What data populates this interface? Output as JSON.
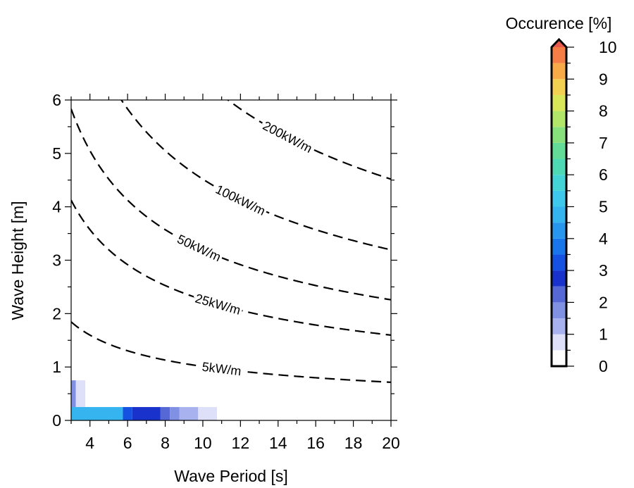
{
  "chart_data": {
    "type": "heatmap",
    "xlabel": "Wave Period [s]",
    "ylabel": "Wave Height [m]",
    "xlim": [
      3,
      20
    ],
    "ylim": [
      0,
      6
    ],
    "x_ticks": [
      4,
      6,
      8,
      10,
      12,
      14,
      16,
      18,
      20
    ],
    "y_ticks": [
      0,
      1,
      2,
      3,
      4,
      5,
      6
    ],
    "cells": [
      {
        "x0": 3.0,
        "x1": 3.25,
        "y0": 0.25,
        "y1": 0.75,
        "value": 1.5
      },
      {
        "x0": 3.25,
        "x1": 3.75,
        "y0": 0.25,
        "y1": 0.75,
        "value": 0.7
      },
      {
        "x0": 3.0,
        "x1": 5.75,
        "y0": 0.0,
        "y1": 0.25,
        "value": 4.5
      },
      {
        "x0": 5.75,
        "x1": 6.25,
        "y0": 0.0,
        "y1": 0.25,
        "value": 3.2
      },
      {
        "x0": 6.25,
        "x1": 7.75,
        "y0": 0.0,
        "y1": 0.25,
        "value": 2.8
      },
      {
        "x0": 7.75,
        "x1": 8.25,
        "y0": 0.0,
        "y1": 0.25,
        "value": 2.2
      },
      {
        "x0": 8.25,
        "x1": 8.75,
        "y0": 0.0,
        "y1": 0.25,
        "value": 1.8
      },
      {
        "x0": 8.75,
        "x1": 9.75,
        "y0": 0.0,
        "y1": 0.25,
        "value": 1.2
      },
      {
        "x0": 9.75,
        "x1": 10.75,
        "y0": 0.0,
        "y1": 0.25,
        "value": 0.7
      }
    ],
    "power_contours": [
      {
        "label": "200kW/m",
        "power": 200
      },
      {
        "label": "100kW/m",
        "power": 100
      },
      {
        "label": "50kW/m",
        "power": 50
      },
      {
        "label": "25kW/m",
        "power": 25
      },
      {
        "label": "5kW/m",
        "power": 5
      }
    ],
    "colorbar": {
      "title": "Occurence [%]",
      "ticks": [
        0,
        1,
        2,
        3,
        4,
        5,
        6,
        7,
        8,
        9,
        10
      ],
      "range": [
        0,
        10
      ],
      "step": 0.5,
      "colors": [
        "#ffffff",
        "#dde0f8",
        "#a8b2ee",
        "#8090e2",
        "#5668d6",
        "#1a32cc",
        "#1552e2",
        "#1976ea",
        "#2996ee",
        "#36b4f0",
        "#3ec8ec",
        "#44d4d6",
        "#4ed8b4",
        "#62dc96",
        "#88e07c",
        "#b2e668",
        "#d8e65a",
        "#f2d052",
        "#f8aa48",
        "#f47e46",
        "#e95a4e"
      ],
      "extend_color": "#e95a4e"
    }
  }
}
